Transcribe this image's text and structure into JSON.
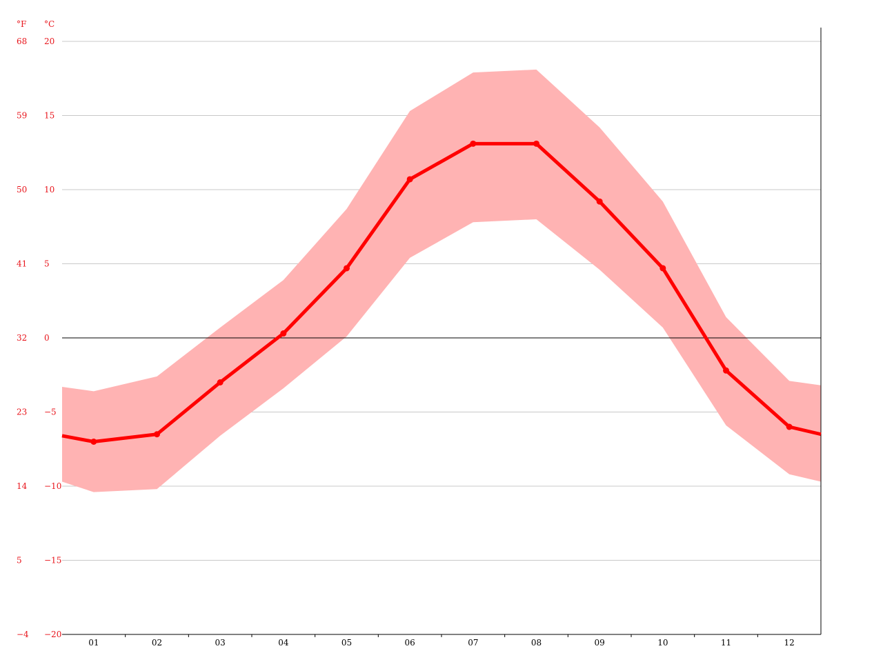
{
  "chart_data": {
    "type": "line",
    "categories": [
      "01",
      "02",
      "03",
      "04",
      "05",
      "06",
      "07",
      "08",
      "09",
      "10",
      "11",
      "12"
    ],
    "unit_labels": {
      "fahrenheit": "°F",
      "celsius": "°C"
    },
    "ylim": [
      -20,
      20
    ],
    "y_ticks_c": [
      "20",
      "15",
      "10",
      "5",
      "0",
      "−5",
      "−10",
      "−15",
      "−20"
    ],
    "y_ticks_f": [
      "68",
      "59",
      "50",
      "41",
      "32",
      "23",
      "14",
      "5",
      "−4"
    ],
    "series": [
      {
        "role": "mean",
        "values": [
          -7.0,
          -6.5,
          -3.0,
          0.3,
          4.7,
          10.7,
          13.1,
          13.1,
          9.2,
          4.7,
          -2.2,
          -6.0
        ]
      },
      {
        "role": "max",
        "values": [
          -3.6,
          -2.6,
          0.7,
          3.9,
          8.7,
          15.3,
          17.9,
          18.1,
          14.2,
          9.2,
          1.4,
          -2.9
        ]
      },
      {
        "role": "min",
        "values": [
          -10.4,
          -10.2,
          -6.6,
          -3.4,
          0.1,
          5.4,
          7.8,
          8.0,
          4.6,
          0.7,
          -5.9,
          -9.2
        ]
      }
    ],
    "edge_values": {
      "left": {
        "mean": -6.6,
        "max": -3.3,
        "min": -9.7
      },
      "right": {
        "mean": -6.5,
        "max": -3.2,
        "min": -9.7
      }
    },
    "grid": true,
    "colors": {
      "line": "#ff0000",
      "band": "#ffb3b3",
      "grid": "#c8c8c8",
      "zero_line": "#000000",
      "axis_labels": "#e8141b",
      "x_labels": "#000000"
    }
  }
}
